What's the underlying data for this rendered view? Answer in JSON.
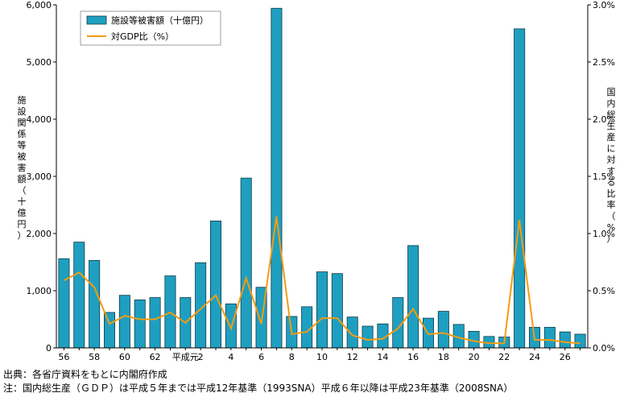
{
  "chart_data": {
    "type": "bar",
    "categories": [
      "56",
      "57",
      "58",
      "59",
      "60",
      "61",
      "62",
      "63",
      "平成元",
      "2",
      "3",
      "4",
      "5",
      "6",
      "7",
      "8",
      "9",
      "10",
      "11",
      "12",
      "13",
      "14",
      "15",
      "16",
      "17",
      "18",
      "19",
      "20",
      "21",
      "22",
      "23",
      "24",
      "25",
      "26",
      "27"
    ],
    "tick_labels": [
      "56",
      "",
      "58",
      "",
      "60",
      "",
      "62",
      "",
      "平成元",
      "2",
      "",
      "4",
      "",
      "6",
      "",
      "8",
      "",
      "10",
      "",
      "12",
      "",
      "14",
      "",
      "16",
      "",
      "18",
      "",
      "20",
      "",
      "22",
      "",
      "24",
      "",
      "26",
      ""
    ],
    "series": [
      {
        "name": "施設等被害額（十億円）",
        "axis": "left",
        "type": "bar",
        "color": "#1f9fc0",
        "values": [
          1560,
          1850,
          1530,
          620,
          920,
          840,
          880,
          1260,
          880,
          1490,
          2220,
          770,
          2970,
          1060,
          5940,
          550,
          720,
          1330,
          1300,
          540,
          380,
          420,
          880,
          1790,
          520,
          640,
          410,
          290,
          200,
          190,
          5580,
          360,
          360,
          280,
          240
        ]
      },
      {
        "name": "対GDP比（%）",
        "axis": "right",
        "type": "line",
        "color": "#f39c12",
        "values": [
          0.59,
          0.66,
          0.53,
          0.21,
          0.28,
          0.25,
          0.25,
          0.31,
          0.22,
          0.34,
          0.46,
          0.17,
          0.61,
          0.21,
          1.15,
          0.12,
          0.14,
          0.26,
          0.26,
          0.11,
          0.07,
          0.08,
          0.17,
          0.34,
          0.12,
          0.13,
          0.09,
          0.06,
          0.04,
          0.04,
          1.12,
          0.07,
          0.07,
          0.05,
          0.04
        ]
      }
    ],
    "y_left": {
      "label": "施設関係等被害額（十億円）",
      "ticks": [
        "0",
        "1,000",
        "2,000",
        "3,000",
        "4,000",
        "5,000",
        "6,000"
      ],
      "ylim": [
        0,
        6000
      ]
    },
    "y_right": {
      "label": "国内総生産に対する比率（%）",
      "ticks": [
        "0.0%",
        "0.5%",
        "1.0%",
        "1.5%",
        "2.0%",
        "2.5%",
        "3.0%"
      ],
      "ylim": [
        0,
        3
      ]
    },
    "legend_position": "top-left",
    "grid": false
  },
  "notes": {
    "source": "出典：各省庁資料をもとに内閣府作成",
    "note": "注：国内総生産（ＧＤＰ）は平成５年までは平成12年基準（1993SNA）平成６年以降は平成23年基準（2008SNA）"
  },
  "colors": {
    "bar": "#1f9fc0",
    "bar_edge": "#0d3d4a",
    "line": "#f39c12"
  }
}
